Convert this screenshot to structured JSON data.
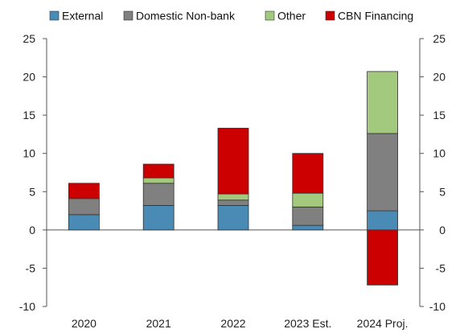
{
  "chart_data": {
    "type": "bar",
    "stacked": true,
    "categories": [
      "2020",
      "2021",
      "2022",
      "2023 Est.",
      "2024 Proj."
    ],
    "series": [
      {
        "name": "External",
        "color": "#4a8bb5",
        "values": [
          2.0,
          3.2,
          3.2,
          0.6,
          2.5
        ]
      },
      {
        "name": "Domestic Non-bank",
        "color": "#808080",
        "values": [
          2.1,
          2.9,
          0.7,
          2.4,
          10.1
        ]
      },
      {
        "name": "Other",
        "color": "#a3c97f",
        "values": [
          0.0,
          0.7,
          0.8,
          1.8,
          8.1
        ]
      },
      {
        "name": "CBN Financing",
        "color": "#cc0000",
        "values": [
          2.0,
          1.8,
          8.6,
          5.2,
          -7.2
        ]
      }
    ],
    "title": "",
    "xlabel": "",
    "ylabel": "",
    "ylim": [
      -10,
      25
    ],
    "yticks": [
      "-10",
      "-5",
      "0",
      "5",
      "10",
      "15",
      "20",
      "25"
    ],
    "ytick_values": [
      -10,
      -5,
      0,
      5,
      10,
      15,
      20,
      25
    ],
    "secondary_y_axis": true,
    "grid": false,
    "legend_position": "top"
  }
}
